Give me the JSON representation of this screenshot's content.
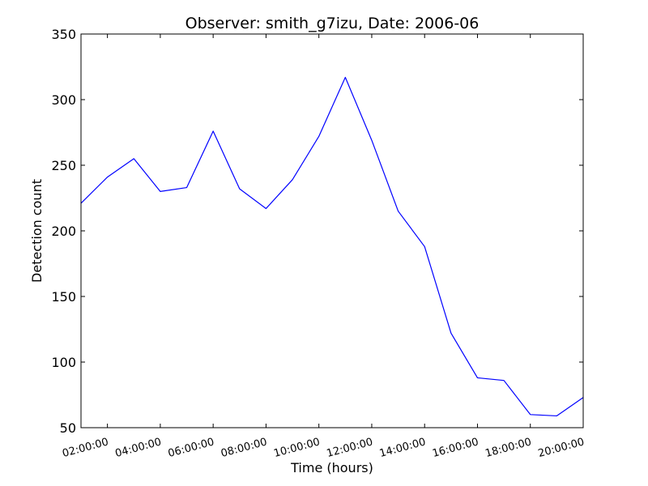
{
  "chart_data": {
    "type": "line",
    "title": "Observer: smith_g7izu, Date: 2006-06",
    "xlabel": "Time (hours)",
    "ylabel": "Detection count",
    "x_unit": "hours",
    "xlim": [
      "01:00:00",
      "20:00:00"
    ],
    "ylim": [
      50,
      350
    ],
    "yticks": [
      50,
      100,
      150,
      200,
      250,
      300,
      350
    ],
    "xticks": [
      "02:00:00",
      "04:00:00",
      "06:00:00",
      "08:00:00",
      "10:00:00",
      "12:00:00",
      "14:00:00",
      "16:00:00",
      "18:00:00",
      "20:00:00"
    ],
    "grid": false,
    "legend": false,
    "series": [
      {
        "color": "#0000ff",
        "x": [
          "01:00:00",
          "02:00:00",
          "03:00:00",
          "04:00:00",
          "05:00:00",
          "06:00:00",
          "07:00:00",
          "08:00:00",
          "09:00:00",
          "10:00:00",
          "11:00:00",
          "12:00:00",
          "13:00:00",
          "14:00:00",
          "15:00:00",
          "16:00:00",
          "17:00:00",
          "18:00:00",
          "19:00:00",
          "20:00:00"
        ],
        "values": [
          221,
          241,
          255,
          230,
          233,
          276,
          232,
          217,
          239,
          272,
          317,
          269,
          215,
          188,
          122,
          88,
          86,
          60,
          59,
          73
        ]
      }
    ]
  }
}
